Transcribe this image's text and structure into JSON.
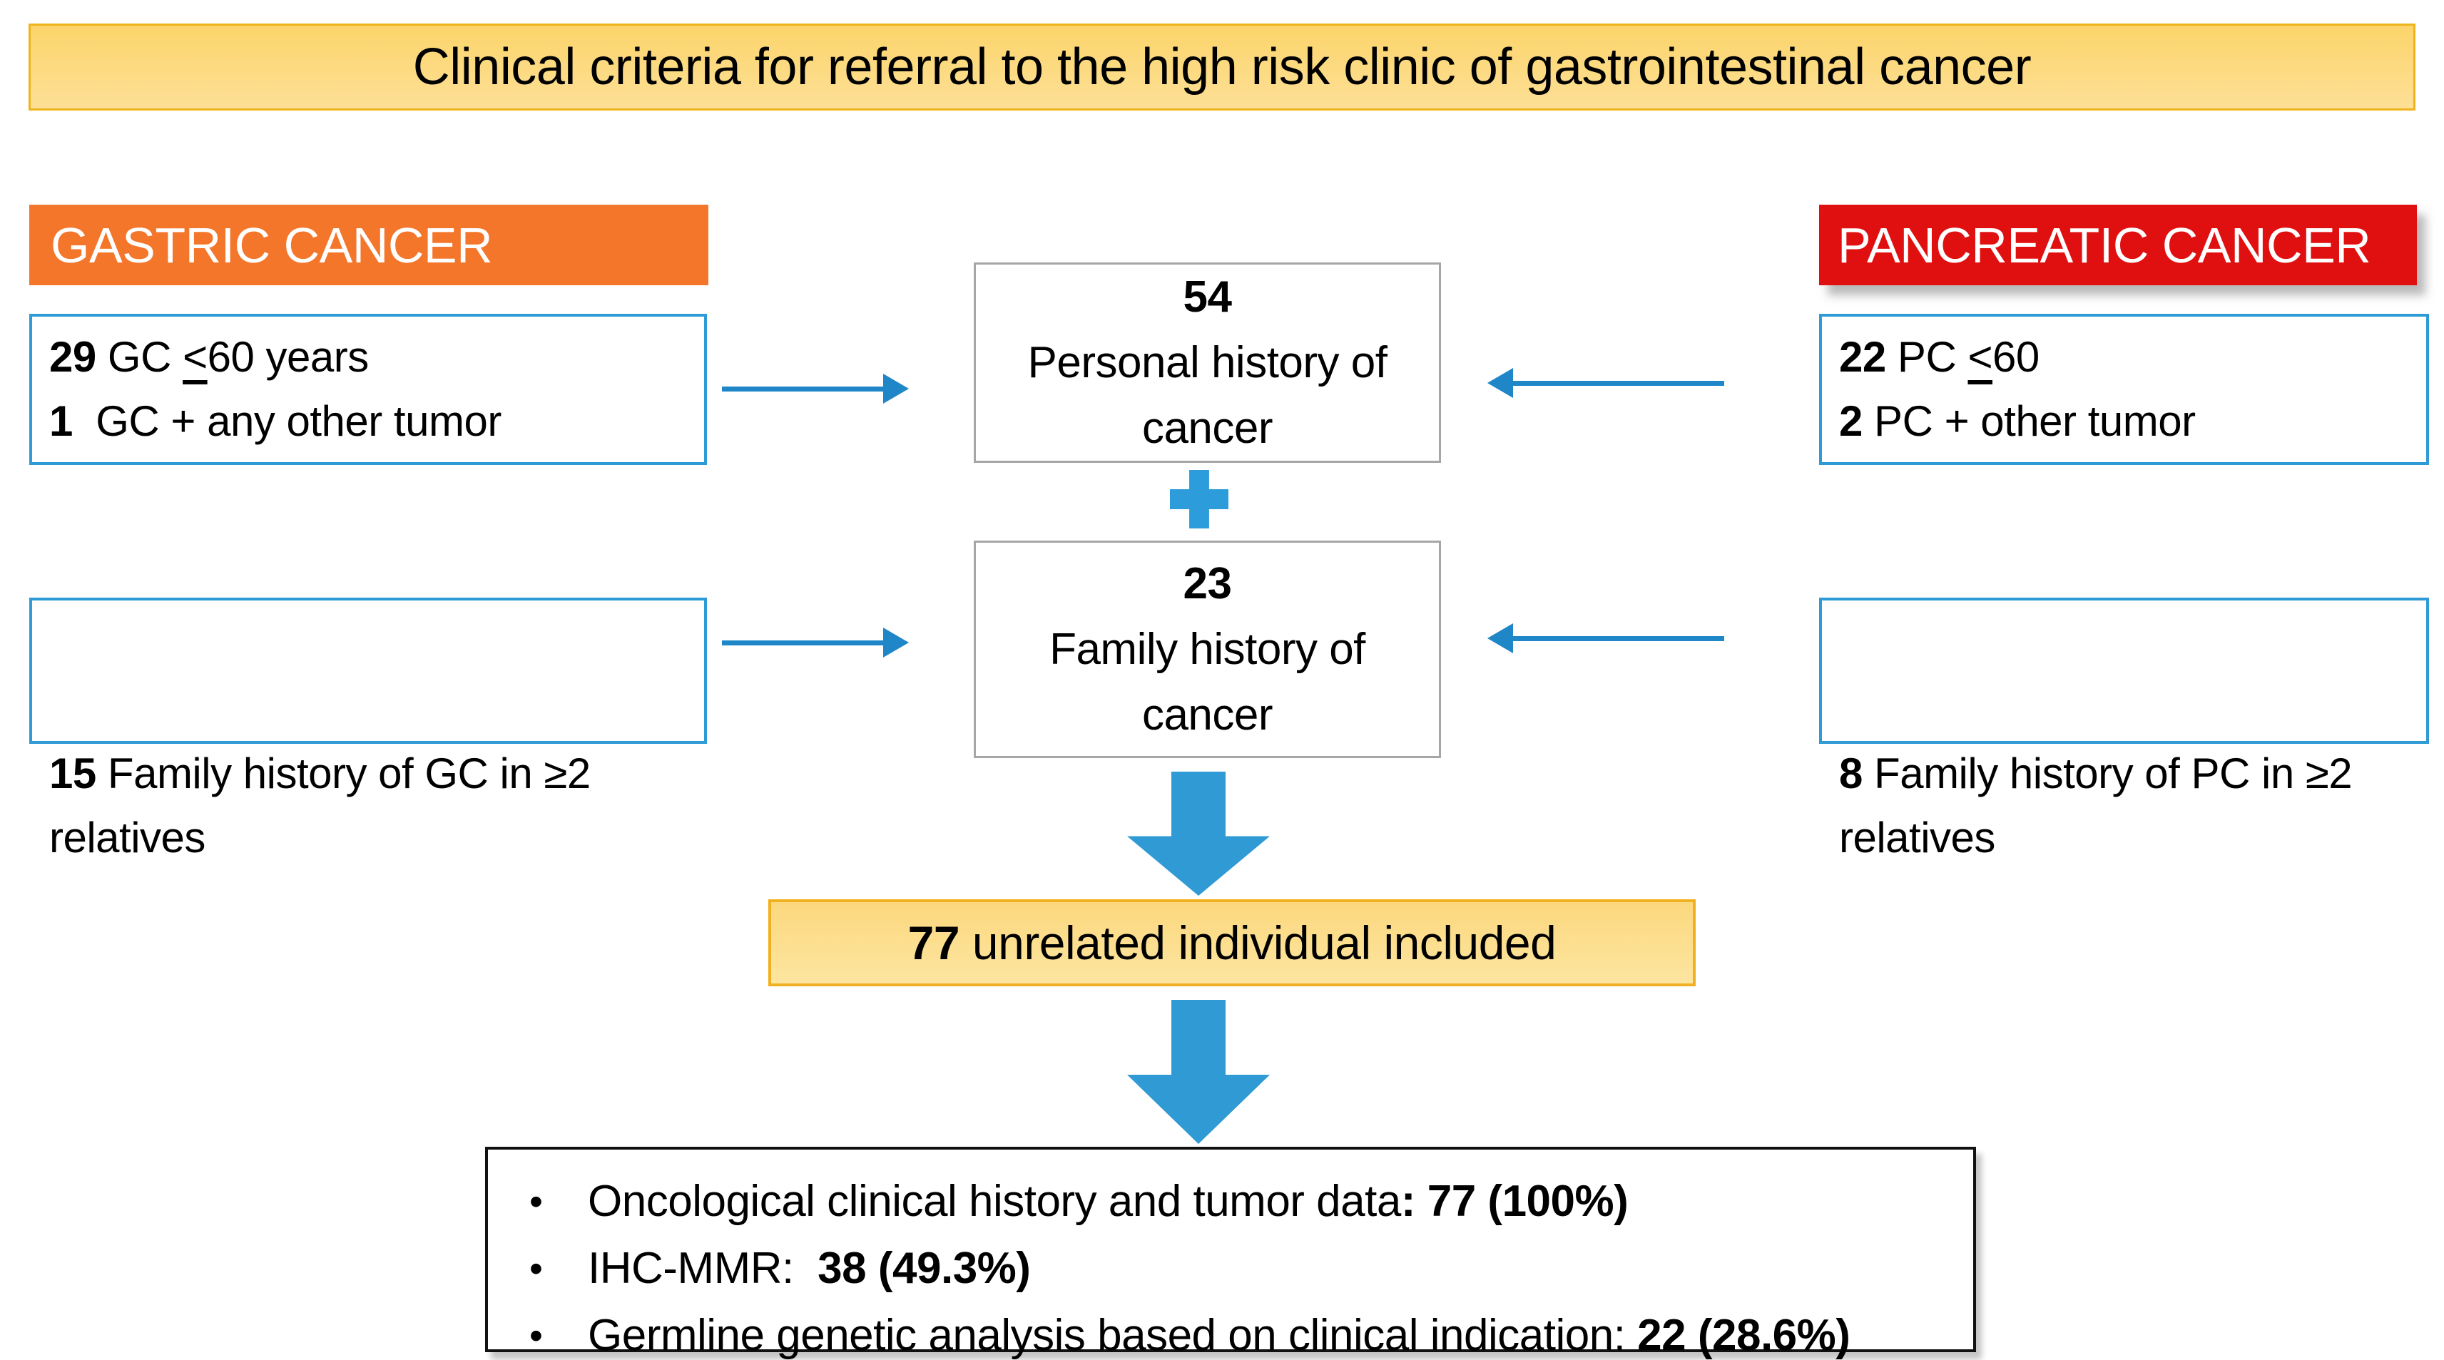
{
  "colors": {
    "banner_border": "#EEB41C",
    "banner_fill_top": "#FCD46A",
    "banner_fill_bottom": "#FDE097",
    "gastric_bg": "#F4762B",
    "pancreatic_bg": "#E01011",
    "criteria_border": "#2E9BD6",
    "center_border": "#A6A6A6",
    "arrow_blue": "#1F86C8",
    "block_arrow_blue": "#2F9AD3",
    "plus_blue": "#2D9CDB",
    "included_border": "#F1B01F",
    "included_fill_top": "#FBD87E",
    "included_fill_bottom": "#FDE5A0",
    "summary_border": "#111111"
  },
  "title": {
    "text": "Clinical criteria for referral to the high risk clinic of gastrointestinal cancer"
  },
  "left": {
    "header": "GASTRIC CANCER",
    "box1": {
      "l1_num": "29",
      "l1_a": " GC ",
      "l1_lt": "<",
      "l1_b": "60 years",
      "l2_num": "1",
      "l2_text": "  GC + any other tumor"
    },
    "box2": {
      "num": "15",
      "text": " Family history of GC in ≥2 relatives"
    }
  },
  "right": {
    "header": "PANCREATIC CANCER",
    "box1": {
      "l1_num": "22",
      "l1_a": " PC ",
      "l1_lt": "<",
      "l1_b": "60",
      "l2_num": "2",
      "l2_text": " PC + other tumor"
    },
    "box2": {
      "num": "8",
      "text": " Family history of PC in ≥2 relatives"
    }
  },
  "center": {
    "box1": {
      "count": "54",
      "line1": "Personal history of",
      "line2": "cancer"
    },
    "plus_icon": "plus",
    "box2": {
      "count": "23",
      "line1": "Family history of",
      "line2": "cancer"
    }
  },
  "included": {
    "num": "77",
    "text": " unrelated individual included"
  },
  "summary": {
    "bullet": "•",
    "items": [
      {
        "normal": "Oncological clinical history and tumor data",
        "bold": ": 77 (100%)"
      },
      {
        "normal": "IHC-MMR:  ",
        "bold": "38 (49.3%)"
      },
      {
        "normal": "Germline genetic analysis based on clinical indication: ",
        "bold": "22 (28.6%)"
      }
    ]
  }
}
